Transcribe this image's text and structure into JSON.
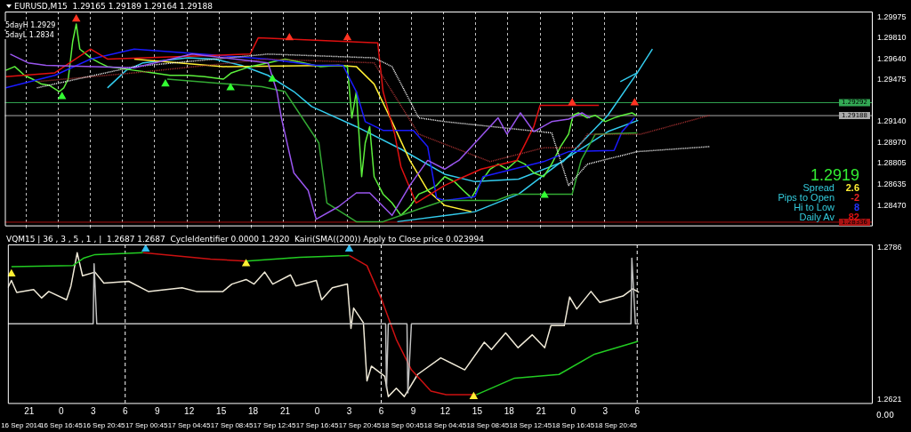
{
  "chart_data": [
    {
      "type": "line",
      "title": "EURUSD,M15  1.29165 1.29189 1.29164 1.29188",
      "xlim": [
        "2014-09-16T11:45",
        "2014-09-19T20:45"
      ],
      "xticks": [
        {
          "value": "2014-09-16T13:45",
          "label": null
        },
        {
          "value": "2014-09-16T16:45",
          "label": null
        },
        {
          "value": "2014-09-16T19:45",
          "label": null
        },
        {
          "value": "2014-09-16T22:45",
          "label": null
        },
        {
          "value": "2014-09-17T01:45",
          "label": null
        },
        {
          "value": "2014-09-17T04:45",
          "label": null
        },
        {
          "value": "2014-09-17T07:45",
          "label": null
        },
        {
          "value": "2014-09-17T10:45",
          "label": null
        },
        {
          "value": "2014-09-17T13:45",
          "label": null
        },
        {
          "value": "2014-09-17T16:45",
          "label": null
        },
        {
          "value": "2014-09-17T19:45",
          "label": null
        },
        {
          "value": "2014-09-17T22:45",
          "label": null
        },
        {
          "value": "2014-09-18T01:45",
          "label": null
        },
        {
          "value": "2014-09-18T04:45",
          "label": null
        },
        {
          "value": "2014-09-18T07:45",
          "label": null
        },
        {
          "value": "2014-09-18T10:45",
          "label": null
        },
        {
          "value": "2014-09-18T13:45",
          "label": null
        },
        {
          "value": "2014-09-18T16:45",
          "label": null
        },
        {
          "value": "2014-09-18T19:45",
          "label": null
        },
        {
          "value": "2014-09-18T22:45",
          "label": null
        }
      ],
      "ylim": [
        1.2831,
        1.3002
      ],
      "yticks": [
        1.29975,
        {
          "value": 1.2981,
          "label": "1.29810"
        },
        {
          "value": 1.2964,
          "label": "1.29640"
        },
        1.29475,
        {
          "value": 1.2914,
          "label": "1.29140"
        },
        {
          "value": 1.2897,
          "label": "1.28970"
        },
        1.28805,
        1.28635,
        {
          "value": 1.2847,
          "label": "1.28470"
        }
      ],
      "grid": "x",
      "tick_labels": "y",
      "ref_lines": [
        {
          "axis": "y",
          "value": 1.29292,
          "label": "1.29292",
          "color": "#33aa55"
        },
        {
          "axis": "y",
          "value": 1.29188,
          "label": "1.29188",
          "color": "#aaaaaa"
        },
        {
          "axis": "y",
          "value": 1.28336,
          "label": "1.28336",
          "color": "#aa1111"
        }
      ],
      "annotations": [
        "5dayH 1.2929",
        "5dayL 1.2834",
        "1.2919",
        "Spread",
        "2.6",
        "Pips to Open",
        "-2",
        "Hi to Low",
        "8",
        "Daily Av",
        "82"
      ],
      "series": [
        {
          "color": "#9955ee",
          "x": [
            "2014-09-16T12:15",
            "2014-09-16T13:55",
            "2014-09-16T15:35",
            "2014-09-16T23:50",
            "2014-09-17T05:15",
            "2014-09-17T12:20",
            "2014-09-17T13:10",
            "2014-09-17T13:35",
            "2014-09-17T14:45",
            "2014-09-17T16:05",
            "2014-09-17T16:50",
            "2014-09-17T18:55",
            "2014-09-17T20:35",
            "2014-09-17T21:50",
            "2014-09-17T23:55",
            "2014-09-18T01:35",
            "2014-09-18T03:15",
            "2014-09-18T04:50",
            "2014-09-18T06:10",
            "2014-09-18T09:50",
            "2014-09-18T10:40",
            "2014-09-18T11:55",
            "2014-09-18T13:10",
            "2014-09-18T14:50",
            "2014-09-18T16:25",
            "2014-09-18T17:40",
            "2014-09-18T18:25"
          ],
          "values": [
            1.2968,
            1.2961,
            1.2959,
            1.2957,
            1.2968,
            1.2961,
            1.2938,
            1.2917,
            1.2873,
            1.2859,
            1.2836,
            1.2846,
            1.2857,
            1.2857,
            1.2839,
            1.2863,
            1.2883,
            1.2876,
            1.2883,
            1.2917,
            1.2904,
            1.2921,
            1.2906,
            1.2914,
            1.2916,
            1.2921,
            1.2917
          ]
        },
        {
          "color": "#ffffff",
          "line_style": "dotted",
          "x": [
            "2014-09-16T14:45",
            "2014-09-16T23:50",
            "2014-09-17T12:20",
            "2014-09-17T22:15",
            "2014-09-17T23:55",
            "2014-09-18T02:25",
            "2014-09-18T04:50",
            "2014-09-18T14:50",
            "2014-09-18T16:25",
            "2014-09-18T18:10",
            "2014-09-18T22:50",
            "2014-09-19T05:35"
          ],
          "values": [
            1.2941,
            1.2958,
            1.2968,
            1.2965,
            1.2958,
            1.2917,
            1.2914,
            1.2905,
            1.2863,
            1.288,
            1.289,
            1.2894
          ]
        },
        {
          "color": "#aa3333",
          "line_style": "dotted",
          "x": [
            "2014-09-16T14:45",
            "2014-09-16T23:50",
            "2014-09-17T12:20",
            "2014-09-17T22:15",
            "2014-09-18T02:25",
            "2014-09-18T09:05",
            "2014-09-18T14:05",
            "2014-09-18T17:20",
            "2014-09-18T18:10",
            "2014-09-18T23:10",
            "2014-09-19T05:35"
          ],
          "values": [
            1.2946,
            1.2953,
            1.2964,
            1.2961,
            1.2904,
            1.2882,
            1.2893,
            1.2893,
            1.2904,
            1.2904,
            1.2919
          ]
        },
        {
          "color": "#33aa33",
          "x": [
            "2014-09-17T02:55",
            "2014-09-17T11:45",
            "2014-09-17T13:55",
            "2014-09-17T17:05",
            "2014-09-17T17:50",
            "2014-09-17T20:35",
            "2014-09-17T23:05",
            "2014-09-18T02:25",
            "2014-09-18T04:50",
            "2014-09-18T09:40",
            "2014-09-18T11:15",
            "2014-09-18T16:45",
            "2014-09-18T17:35",
            "2014-09-18T18:55",
            "2014-09-18T22:50"
          ],
          "values": [
            1.2948,
            1.2942,
            1.2938,
            1.2897,
            1.2849,
            1.2834,
            1.2834,
            1.2844,
            1.2851,
            1.2851,
            1.2856,
            1.2856,
            1.2883,
            1.2904,
            1.2905
          ]
        },
        {
          "color": "#e01010",
          "x": [
            "2014-09-16T11:50",
            "2014-09-16T16:25",
            "2014-09-16T19:45",
            "2014-09-16T21:20",
            "2014-09-17T10:40",
            "2014-09-17T11:25",
            "2014-09-17T22:35",
            "2014-09-17T23:05",
            "2014-09-18T00:10",
            "2014-09-18T00:45",
            "2014-09-18T02:10",
            "2014-09-18T04:50",
            "2014-09-18T08:15",
            "2014-09-18T11:35",
            "2014-09-18T13:10",
            "2014-09-18T13:45",
            "2014-09-18T19:15"
          ],
          "values": [
            1.295,
            1.2953,
            1.2972,
            1.2964,
            1.2968,
            1.2981,
            1.2977,
            1.2938,
            1.2904,
            1.2878,
            1.2849,
            1.2863,
            1.2876,
            1.2883,
            1.291,
            1.2927,
            1.2927
          ]
        },
        {
          "color": "#1a1aff",
          "x": [
            "2014-09-16T11:50",
            "2014-09-16T16:25",
            "2014-09-16T19:45",
            "2014-09-16T23:50",
            "2014-09-17T12:20",
            "2014-09-17T16:50",
            "2014-09-17T19:20",
            "2014-09-17T20:35",
            "2014-09-17T21:25",
            "2014-09-17T23:05",
            "2014-09-18T01:55",
            "2014-09-18T03:15",
            "2014-09-18T04:05",
            "2014-09-18T04:50",
            "2014-09-18T07:40",
            "2014-09-18T08:25",
            "2014-09-18T14:05",
            "2014-09-18T16:25",
            "2014-09-18T20:40",
            "2014-09-18T21:25",
            "2014-09-18T22:35"
          ],
          "values": [
            1.2941,
            1.2951,
            1.2964,
            1.2972,
            1.2964,
            1.2959,
            1.2959,
            1.2938,
            1.2914,
            1.2907,
            1.2907,
            1.2894,
            1.2853,
            1.2851,
            1.2854,
            1.287,
            1.2882,
            1.289,
            1.2891,
            1.2906,
            1.2917
          ]
        },
        {
          "color": "#5cf03c",
          "x": [
            "2014-09-16T11:50",
            "2014-09-16T12:40",
            "2014-09-16T13:35",
            "2014-09-16T14:20",
            "2014-09-16T15:10",
            "2014-09-16T15:55",
            "2014-09-16T16:50",
            "2014-09-16T17:15",
            "2014-09-16T17:40",
            "2014-09-16T18:05",
            "2014-09-16T18:25",
            "2014-09-16T18:45",
            "2014-09-16T19:20",
            "2014-09-16T19:45",
            "2014-09-16T20:35",
            "2014-09-16T21:20",
            "2014-09-16T22:15",
            "2014-09-16T23:50",
            "2014-09-17T01:35",
            "2014-09-17T03:10",
            "2014-09-17T04:50",
            "2014-09-17T06:25",
            "2014-09-17T08:10",
            "2014-09-17T08:55",
            "2014-09-17T10:40",
            "2014-09-17T12:20",
            "2014-09-17T13:55",
            "2014-09-17T15:40",
            "2014-09-17T17:15",
            "2014-09-17T18:55",
            "2014-09-17T19:45",
            "2014-09-17T20:10",
            "2014-09-17T20:35",
            "2014-09-17T21:05",
            "2014-09-17T21:25",
            "2014-09-17T21:50",
            "2014-09-17T22:15",
            "2014-09-17T23:05",
            "2014-09-17T23:55",
            "2014-09-18T00:45",
            "2014-09-18T01:35",
            "2014-09-18T02:25",
            "2014-09-18T03:15",
            "2014-09-18T04:05",
            "2014-09-18T04:50",
            "2014-09-18T05:45",
            "2014-09-18T06:35",
            "2014-09-18T07:20",
            "2014-09-18T08:15",
            "2014-09-18T09:05",
            "2014-09-18T09:50",
            "2014-09-18T10:40",
            "2014-09-18T11:35",
            "2014-09-18T12:20",
            "2014-09-18T13:10",
            "2014-09-18T14:05",
            "2014-09-18T14:50",
            "2014-09-18T15:40",
            "2014-09-18T16:25",
            "2014-09-18T16:50",
            "2014-09-18T17:20",
            "2014-09-18T18:10",
            "2014-09-18T18:55",
            "2014-09-18T19:50",
            "2014-09-18T20:40",
            "2014-09-18T21:25",
            "2014-09-18T22:20",
            "2014-09-18T22:45"
          ],
          "values": [
            1.2955,
            1.2958,
            1.2951,
            1.2948,
            1.2944,
            1.2943,
            1.2938,
            1.2941,
            1.2948,
            1.2978,
            1.2992,
            1.2972,
            1.2968,
            1.2965,
            1.2961,
            1.2958,
            1.2957,
            1.2955,
            1.2953,
            1.2951,
            1.2951,
            1.295,
            1.2948,
            1.2953,
            1.2958,
            1.2961,
            1.2964,
            1.2961,
            1.2958,
            1.2959,
            1.2958,
            1.2917,
            1.2938,
            1.287,
            1.2897,
            1.291,
            1.287,
            1.2856,
            1.2849,
            1.2839,
            1.2846,
            1.2856,
            1.2859,
            1.2863,
            1.287,
            1.2866,
            1.2859,
            1.2853,
            1.2866,
            1.2876,
            1.288,
            1.2876,
            1.2883,
            1.288,
            1.2873,
            1.287,
            1.288,
            1.2894,
            1.2904,
            1.2919,
            1.2921,
            1.2917,
            1.2919,
            1.2914,
            1.2917,
            1.2919,
            1.2921,
            1.2919
          ]
        },
        {
          "color": "#ffee33",
          "x": [
            "2014-09-16T23:50",
            "2014-09-17T08:10",
            "2014-09-17T18:55",
            "2014-09-17T20:35",
            "2014-09-17T22:15",
            "2014-09-17T23:55",
            "2014-09-18T01:35",
            "2014-09-18T03:15",
            "2014-09-18T04:50",
            "2014-09-18T07:20"
          ],
          "values": [
            1.2964,
            1.2958,
            1.2959,
            1.2958,
            1.2944,
            1.2914,
            1.2883,
            1.2859,
            1.2847,
            1.2842
          ]
        },
        {
          "color": "#33ccee",
          "x": [
            "2014-09-16T21:20",
            "2014-09-16T23:05",
            "2014-09-17T00:40",
            "2014-09-17T04:50",
            "2014-09-17T07:20",
            "2014-09-17T09:50",
            "2014-09-17T12:20",
            "2014-09-17T14:45",
            "2014-09-17T16:25",
            "2014-09-17T20:35",
            "2014-09-18T00:45",
            "2014-09-18T04:50",
            "2014-09-18T07:40",
            "2014-09-18T11:45",
            "2014-09-18T15:55",
            "2014-09-18T20:05",
            "2014-09-18T22:50",
            "2014-09-19T00:15"
          ],
          "values": [
            1.2941,
            1.2955,
            1.2961,
            1.2965,
            1.2964,
            1.2959,
            1.2951,
            1.2938,
            1.2926,
            1.291,
            1.2892,
            1.2872,
            1.2866,
            1.2868,
            1.2882,
            1.2919,
            1.2953,
            1.2972
          ]
        },
        {
          "color": "#33ccee",
          "x": [
            "2014-09-18T00:25",
            "2014-09-18T07:40",
            "2014-09-18T11:45",
            "2014-09-18T15:55",
            "2014-09-18T20:05",
            "2014-09-18T22:55"
          ],
          "values": [
            1.2834,
            1.2842,
            1.2856,
            1.2883,
            1.2906,
            1.2915
          ]
        },
        {
          "color": "#33ccee",
          "x": [
            "2014-09-18T21:15",
            "2014-09-18T22:50"
          ],
          "values": [
            1.2946,
            1.2953
          ]
        },
        {
          "type": "scatter",
          "color": "#33ff33",
          "marker": "triangle",
          "x": [
            "2014-09-16T17:05",
            "2014-09-17T02:45",
            "2014-09-17T08:50",
            "2014-09-17T12:45",
            "2014-09-18T14:10"
          ],
          "values": [
            1.2934,
            1.2944,
            1.2941,
            1.2948,
            1.2855
          ]
        },
        {
          "type": "scatter",
          "color": "#ff3322",
          "marker": "triangle",
          "x": [
            "2014-09-16T18:25",
            "2014-09-17T14:20",
            "2014-09-17T19:45",
            "2014-09-18T16:45",
            "2014-09-18T22:35"
          ],
          "values": [
            1.2996,
            1.2981,
            1.2981,
            1.2929,
            1.2929
          ]
        }
      ]
    },
    {
      "type": "line",
      "title": "VQM15 | 36 , 3 , 5 , 1 , |  1.2687 1.2687  CycleIdentifier 0.0000 1.2920  Kairi(SMA((200)) Apply to Close price 0.023994",
      "xlim": [
        "2014-09-16T11:45",
        "2014-09-19T20:45"
      ],
      "xticks": [
        {
          "value": "2014-09-16T13:00",
          "label": "16 Sep 2014"
        },
        {
          "value": "2014-09-16T16:45",
          "label": "16 Sep 16:45"
        },
        {
          "value": "2014-09-16T20:45",
          "label": "16 Sep 20:45"
        },
        {
          "value": "2014-09-17T00:45",
          "label": "17 Sep 00:45"
        },
        {
          "value": "2014-09-17T04:45",
          "label": "17 Sep 04:45"
        },
        {
          "value": "2014-09-17T08:45",
          "label": "17 Sep 08:45"
        },
        {
          "value": "2014-09-17T12:45",
          "label": "17 Sep 12:45"
        },
        {
          "value": "2014-09-17T16:45",
          "label": "17 Sep 16:45"
        },
        {
          "value": "2014-09-17T20:45",
          "label": "17 Sep 20:45"
        },
        {
          "value": "2014-09-18T00:45",
          "label": "18 Sep 00:45"
        },
        {
          "value": "2014-09-18T04:45",
          "label": "18 Sep 04:45"
        },
        {
          "value": "2014-09-18T08:45",
          "label": "18 Sep 08:45"
        },
        {
          "value": "2014-09-18T12:45",
          "label": "18 Sep 12:45"
        },
        {
          "value": "2014-09-18T16:45",
          "label": "18 Sep 16:45"
        },
        {
          "value": "2014-09-18T20:45",
          "label": "18 Sep 20:45"
        }
      ],
      "x2lim": [
        "2014-09-16T19:00",
        "2014-09-20T04:00"
      ],
      "x2ticks": [
        {
          "value": "2014-09-16T21:00",
          "label": "21"
        },
        {
          "value": "2014-09-17T00:00",
          "label": "0"
        },
        {
          "value": "2014-09-17T03:00",
          "label": "3"
        },
        {
          "value": "2014-09-17T06:00",
          "label": "6"
        },
        {
          "value": "2014-09-17T09:00",
          "label": "9"
        },
        {
          "value": "2014-09-17T12:00",
          "label": "12"
        },
        {
          "value": "2014-09-17T15:00",
          "label": "15"
        },
        {
          "value": "2014-09-17T18:00",
          "label": "18"
        },
        {
          "value": "2014-09-17T21:00",
          "label": "21"
        },
        {
          "value": "2014-09-18T00:00",
          "label": "0"
        },
        {
          "value": "2014-09-18T03:00",
          "label": "3"
        },
        {
          "value": "2014-09-18T06:00",
          "label": "6"
        },
        {
          "value": "2014-09-18T09:00",
          "label": "9"
        },
        {
          "value": "2014-09-18T12:00",
          "label": "12"
        },
        {
          "value": "2014-09-18T15:00",
          "label": "15"
        },
        {
          "value": "2014-09-18T18:00",
          "label": "18"
        },
        {
          "value": "2014-09-18T21:00",
          "label": "21"
        },
        {
          "value": "2014-09-19T00:00",
          "label": "0"
        },
        {
          "value": "2014-09-19T03:00",
          "label": "3"
        },
        {
          "value": "2014-09-19T06:00",
          "label": "6"
        }
      ],
      "ylim": [
        1.2617,
        1.2789
      ],
      "yticks": [
        1.2786,
        1.2621
      ],
      "ref_lines": [
        {
          "axis": "x",
          "value": "2014-09-16T22:45",
          "line_style": "dashed",
          "color": "#ffffff"
        },
        {
          "axis": "x",
          "value": "2014-09-17T22:45",
          "line_style": "dashed",
          "color": "#ffffff"
        },
        {
          "axis": "x",
          "value": "2014-09-18T22:45",
          "line_style": "dashed",
          "color": "#ffffff"
        }
      ],
      "annotations": [
        "0.00"
      ],
      "series": [
        {
          "color": "#c0c0c0",
          "x": [
            "2014-09-16T11:45",
            "2014-09-16T19:45",
            "2014-09-16T19:50",
            "2014-09-16T20:05",
            "2014-09-17T23:10",
            "2014-09-17T23:15",
            "2014-09-17T23:25",
            "2014-09-18T01:10",
            "2014-09-18T01:15",
            "2014-09-18T01:35",
            "2014-09-18T22:10",
            "2014-09-18T22:15",
            "2014-09-18T22:35",
            "2014-09-18T22:55"
          ],
          "values": [
            1.2703,
            1.2703,
            1.2768,
            1.2703,
            1.2703,
            1.2633,
            1.2703,
            1.2703,
            1.2628,
            1.2703,
            1.2703,
            1.2774,
            1.2703,
            1.2703
          ]
        },
        {
          "color": "#22cc22",
          "x": [
            "2014-09-16T12:05",
            "2014-09-16T17:50",
            "2014-09-16T18:50",
            "2014-09-16T19:55",
            "2014-09-17T00:25",
            "2014-09-17T04:45",
            "2014-09-17T10:05",
            "2014-09-17T15:05",
            "2014-09-17T19:45",
            "2014-09-17T23:45",
            "2014-09-18T07:40",
            "2014-09-18T11:15",
            "2014-09-18T15:25",
            "2014-09-18T18:45",
            "2014-09-18T22:50"
          ],
          "values": [
            1.2765,
            1.2766,
            1.2774,
            1.2778,
            1.278,
            null,
            1.2771,
            1.2775,
            1.2777,
            null,
            1.2626,
            1.2644,
            1.2648,
            1.267,
            1.2684
          ]
        },
        {
          "color": "#cc1111",
          "x": [
            "2014-09-17T00:25",
            "2014-09-17T06:45",
            "2014-09-17T10:05",
            "2014-09-17T14:45",
            "2014-09-17T19:45",
            "2014-09-17T21:25",
            "2014-09-17T22:50",
            "2014-09-18T00:10",
            "2014-09-18T01:35",
            "2014-09-18T03:25",
            "2014-09-18T04:50",
            "2014-09-18T07:40"
          ],
          "values": [
            1.278,
            1.2773,
            1.2771,
            null,
            1.2777,
            1.2766,
            1.2728,
            1.2686,
            1.2653,
            1.263,
            1.2626,
            1.2626
          ]
        },
        {
          "color": "#f0ead8",
          "x": [
            "2014-09-16T11:45",
            "2014-09-16T12:05",
            "2014-09-16T12:35",
            "2014-09-16T14:10",
            "2014-09-16T14:55",
            "2014-09-16T15:35",
            "2014-09-16T17:15",
            "2014-09-16T17:40",
            "2014-09-16T18:15",
            "2014-09-16T18:45",
            "2014-09-16T19:55",
            "2014-09-16T20:45",
            "2014-09-16T23:05",
            "2014-09-17T00:55",
            "2014-09-17T04:05",
            "2014-09-17T05:25",
            "2014-09-17T07:55",
            "2014-09-17T08:45",
            "2014-09-17T10:05",
            "2014-09-17T10:50",
            "2014-09-17T11:50",
            "2014-09-17T12:35",
            "2014-09-17T14:15",
            "2014-09-17T14:45",
            "2014-09-17T16:40",
            "2014-09-17T17:10",
            "2014-09-17T18:10",
            "2014-09-17T19:35",
            "2014-09-17T19:55",
            "2014-09-17T20:10",
            "2014-09-17T21:05",
            "2014-09-17T21:25",
            "2014-09-17T21:50",
            "2014-09-17T23:05",
            "2014-09-17T23:25",
            "2014-09-18T00:10",
            "2014-09-18T00:55",
            "2014-09-18T02:10",
            "2014-09-18T04:20",
            "2014-09-18T06:35",
            "2014-09-18T08:25",
            "2014-09-18T09:05",
            "2014-09-18T10:25",
            "2014-09-18T11:35",
            "2014-09-18T12:55",
            "2014-09-18T14:05",
            "2014-09-18T14:40",
            "2014-09-18T15:55",
            "2014-09-18T16:25",
            "2014-09-18T17:05",
            "2014-09-18T18:25",
            "2014-09-18T19:15",
            "2014-09-18T21:25",
            "2014-09-18T22:20",
            "2014-09-18T22:55"
          ],
          "values": [
            1.2742,
            1.275,
            1.2737,
            1.274,
            1.2731,
            1.2738,
            1.2729,
            1.2744,
            1.278,
            1.2755,
            1.2759,
            1.2747,
            1.2749,
            1.2738,
            1.2742,
            1.2738,
            1.2738,
            1.2746,
            1.2751,
            1.2746,
            1.2759,
            1.2746,
            1.2756,
            1.2744,
            1.275,
            1.2729,
            1.2742,
            1.2746,
            1.2698,
            1.272,
            1.2704,
            1.2641,
            1.2657,
            1.2646,
            1.2624,
            1.2633,
            1.2624,
            1.2648,
            1.2666,
            1.2653,
            1.2683,
            1.2675,
            1.2693,
            1.2677,
            1.2691,
            1.2677,
            1.2701,
            1.2701,
            1.2732,
            1.2719,
            1.2738,
            1.2726,
            1.2733,
            1.2741,
            1.2737
          ]
        },
        {
          "type": "scatter",
          "color": "#ffee33",
          "marker": "triangle",
          "x": [
            "2014-09-16T12:05",
            "2014-09-17T10:05",
            "2014-09-18T07:25"
          ],
          "values": [
            1.2757,
            1.2768,
            1.2624
          ]
        },
        {
          "type": "scatter",
          "color": "#33bbee",
          "marker": "triangle",
          "x": [
            "2014-09-17T00:40",
            "2014-09-17T19:45"
          ],
          "values": [
            1.2784,
            1.2784
          ]
        }
      ]
    }
  ]
}
